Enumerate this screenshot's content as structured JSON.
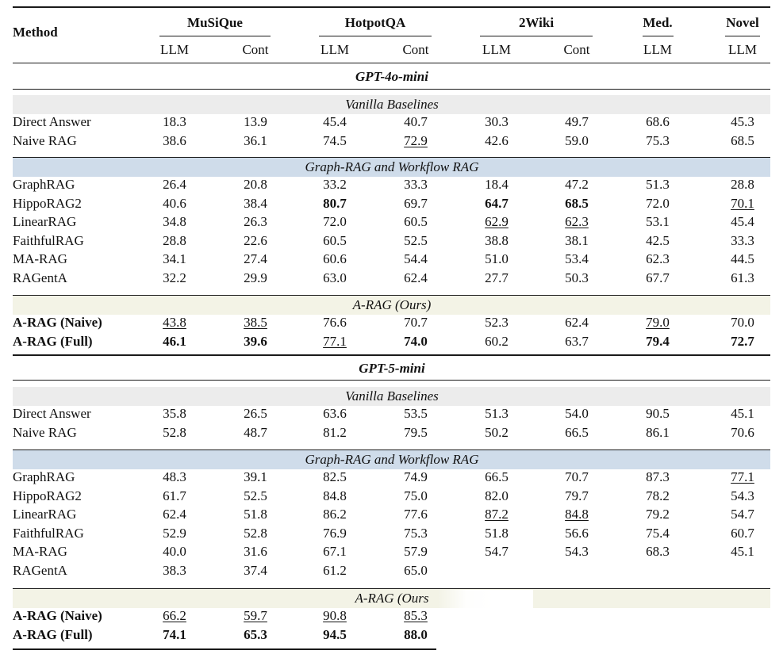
{
  "table": {
    "method_header": "Method",
    "groups": [
      {
        "name": "MuSiQue",
        "subs": [
          "LLM",
          "Cont"
        ]
      },
      {
        "name": "HotpotQA",
        "subs": [
          "LLM",
          "Cont"
        ]
      },
      {
        "name": "2Wiki",
        "subs": [
          "LLM",
          "Cont"
        ]
      },
      {
        "name": "Med.",
        "subs": [
          "LLM"
        ]
      },
      {
        "name": "Novel",
        "subs": [
          "LLM"
        ]
      }
    ],
    "blocks": [
      {
        "model": "GPT-4o-mini",
        "sections": [
          {
            "title": "Vanilla Baselines",
            "color": "#ececec",
            "rows": [
              {
                "method": "Direct Answer",
                "values": [
                  "18.3",
                  "13.9",
                  "45.4",
                  "40.7",
                  "30.3",
                  "49.7",
                  "68.6",
                  "45.3"
                ],
                "bold": [],
                "under": [],
                "bold_label": false
              },
              {
                "method": "Naive RAG",
                "values": [
                  "38.6",
                  "36.1",
                  "74.5",
                  "72.9",
                  "42.6",
                  "59.0",
                  "75.3",
                  "68.5"
                ],
                "bold": [],
                "under": [
                  3
                ],
                "bold_label": false
              }
            ]
          },
          {
            "title": "Graph-RAG and Workflow RAG",
            "color": "#cfdcea",
            "rows": [
              {
                "method": "GraphRAG",
                "values": [
                  "26.4",
                  "20.8",
                  "33.2",
                  "33.3",
                  "18.4",
                  "47.2",
                  "51.3",
                  "28.8"
                ],
                "bold": [],
                "under": [],
                "bold_label": false
              },
              {
                "method": "HippoRAG2",
                "values": [
                  "40.6",
                  "38.4",
                  "80.7",
                  "69.7",
                  "64.7",
                  "68.5",
                  "72.0",
                  "70.1"
                ],
                "bold": [
                  2,
                  4,
                  5
                ],
                "under": [
                  7
                ],
                "bold_label": false
              },
              {
                "method": "LinearRAG",
                "values": [
                  "34.8",
                  "26.3",
                  "72.0",
                  "60.5",
                  "62.9",
                  "62.3",
                  "53.1",
                  "45.4"
                ],
                "bold": [],
                "under": [
                  4,
                  5
                ],
                "bold_label": false
              },
              {
                "method": "FaithfulRAG",
                "values": [
                  "28.8",
                  "22.6",
                  "60.5",
                  "52.5",
                  "38.8",
                  "38.1",
                  "42.5",
                  "33.3"
                ],
                "bold": [],
                "under": [],
                "bold_label": false
              },
              {
                "method": "MA-RAG",
                "values": [
                  "34.1",
                  "27.4",
                  "60.6",
                  "54.4",
                  "51.0",
                  "53.4",
                  "62.3",
                  "44.5"
                ],
                "bold": [],
                "under": [],
                "bold_label": false
              },
              {
                "method": "RAGentA",
                "values": [
                  "32.2",
                  "29.9",
                  "63.0",
                  "62.4",
                  "27.7",
                  "50.3",
                  "67.7",
                  "61.3"
                ],
                "bold": [],
                "under": [],
                "bold_label": false
              }
            ]
          },
          {
            "title": "A-RAG (Ours)",
            "color": "#f3f3e6",
            "rows": [
              {
                "method": "A-RAG (Naive)",
                "values": [
                  "43.8",
                  "38.5",
                  "76.6",
                  "70.7",
                  "52.3",
                  "62.4",
                  "79.0",
                  "70.0"
                ],
                "bold": [],
                "under": [
                  0,
                  1,
                  6
                ],
                "bold_label": true
              },
              {
                "method": "A-RAG (Full)",
                "values": [
                  "46.1",
                  "39.6",
                  "77.1",
                  "74.0",
                  "60.2",
                  "63.7",
                  "79.4",
                  "72.7"
                ],
                "bold": [
                  0,
                  1,
                  3,
                  6,
                  7
                ],
                "under": [
                  2
                ],
                "bold_label": true
              }
            ]
          }
        ]
      },
      {
        "model": "GPT-5-mini",
        "sections": [
          {
            "title": "Vanilla Baselines",
            "color": "#ececec",
            "rows": [
              {
                "method": "Direct Answer",
                "values": [
                  "35.8",
                  "26.5",
                  "63.6",
                  "53.5",
                  "51.3",
                  "54.0",
                  "90.5",
                  "45.1"
                ],
                "bold": [],
                "under": [],
                "bold_label": false
              },
              {
                "method": "Naive RAG",
                "values": [
                  "52.8",
                  "48.7",
                  "81.2",
                  "79.5",
                  "50.2",
                  "66.5",
                  "86.1",
                  "70.6"
                ],
                "bold": [],
                "under": [],
                "bold_label": false
              }
            ]
          },
          {
            "title": "Graph-RAG and Workflow RAG",
            "color": "#cfdcea",
            "rows": [
              {
                "method": "GraphRAG",
                "values": [
                  "48.3",
                  "39.1",
                  "82.5",
                  "74.9",
                  "66.5",
                  "70.7",
                  "87.3",
                  "77.1"
                ],
                "bold": [],
                "under": [
                  7
                ],
                "bold_label": false
              },
              {
                "method": "HippoRAG2",
                "values": [
                  "61.7",
                  "52.5",
                  "84.8",
                  "75.0",
                  "82.0",
                  "79.7",
                  "78.2",
                  "54.3"
                ],
                "bold": [],
                "under": [],
                "bold_label": false
              },
              {
                "method": "LinearRAG",
                "values": [
                  "62.4",
                  "51.8",
                  "86.2",
                  "77.6",
                  "87.2",
                  "84.8",
                  "79.2",
                  "54.7"
                ],
                "bold": [],
                "under": [
                  4,
                  5
                ],
                "bold_label": false
              },
              {
                "method": "FaithfulRAG",
                "values": [
                  "52.9",
                  "52.8",
                  "76.9",
                  "75.3",
                  "51.8",
                  "56.6",
                  "75.4",
                  "60.7"
                ],
                "bold": [],
                "under": [],
                "bold_label": false
              },
              {
                "method": "MA-RAG",
                "values": [
                  "40.0",
                  "31.6",
                  "67.1",
                  "57.9",
                  "54.7",
                  "54.3",
                  "68.3",
                  "45.1"
                ],
                "bold": [],
                "under": [],
                "bold_label": false
              },
              {
                "method": "RAGentA",
                "values": [
                  "38.3",
                  "37.4",
                  "61.2",
                  "65.0",
                  "",
                  "",
                  "",
                  ""
                ],
                "bold": [],
                "under": [],
                "bold_label": false
              }
            ]
          },
          {
            "title": "A-RAG (Ours",
            "color": "#f3f3e6",
            "rows": [
              {
                "method": "A-RAG (Naive)",
                "values": [
                  "66.2",
                  "59.7",
                  "90.8",
                  "85.3",
                  "",
                  "",
                  "",
                  ""
                ],
                "bold": [],
                "under": [
                  0,
                  1,
                  2,
                  3
                ],
                "bold_label": true
              },
              {
                "method": "A-RAG (Full)",
                "values": [
                  "74.1",
                  "65.3",
                  "94.5",
                  "88.0",
                  "",
                  "",
                  "",
                  ""
                ],
                "bold": [
                  0,
                  1,
                  2,
                  3
                ],
                "under": [],
                "bold_label": true
              }
            ]
          }
        ]
      }
    ]
  }
}
